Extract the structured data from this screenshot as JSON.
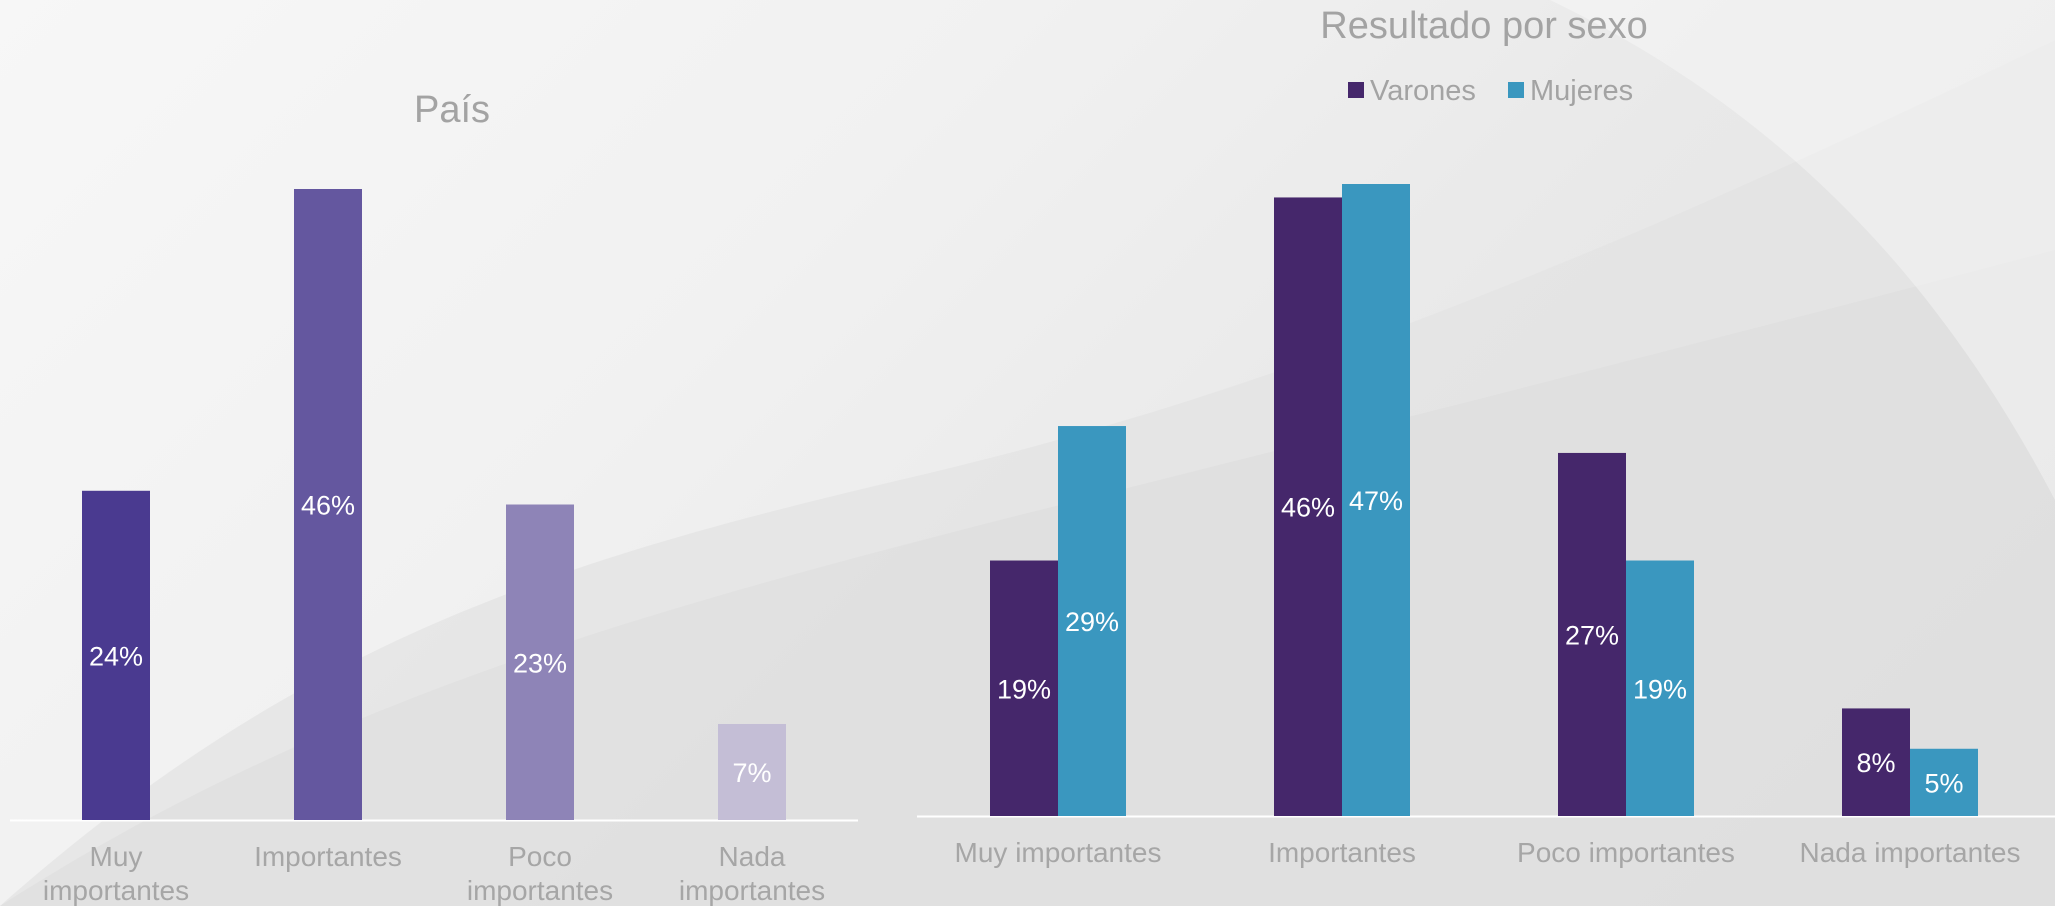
{
  "chart_data": [
    {
      "type": "bar",
      "title": "País",
      "categories": [
        [
          "Muy",
          "importantes"
        ],
        [
          "Importantes"
        ],
        [
          "Poco",
          "importantes"
        ],
        [
          "Nada",
          "importantes"
        ]
      ],
      "values": [
        24,
        46,
        23,
        7
      ],
      "data_labels": [
        "24%",
        "46%",
        "23%",
        "7%"
      ],
      "colors": [
        "#4a3a90",
        "#64579f",
        "#8e84b7",
        "#c4bed6"
      ],
      "ylim": [
        0,
        50
      ],
      "legend": "none",
      "grid": false
    },
    {
      "type": "bar",
      "title": "Resultado por sexo",
      "categories": [
        "Muy importantes",
        "Importantes",
        "Poco importantes",
        "Nada importantes"
      ],
      "series": [
        {
          "name": "Varones",
          "values": [
            19,
            46,
            27,
            8
          ],
          "data_labels": [
            "19%",
            "46%",
            "27%",
            "8%"
          ],
          "color": "#45276b"
        },
        {
          "name": "Mujeres",
          "values": [
            29,
            47,
            19,
            5
          ],
          "data_labels": [
            "29%",
            "47%",
            "19%",
            "5%"
          ],
          "color": "#3a97bf"
        }
      ],
      "ylim": [
        0,
        50
      ],
      "legend": "top",
      "grid": false
    }
  ]
}
